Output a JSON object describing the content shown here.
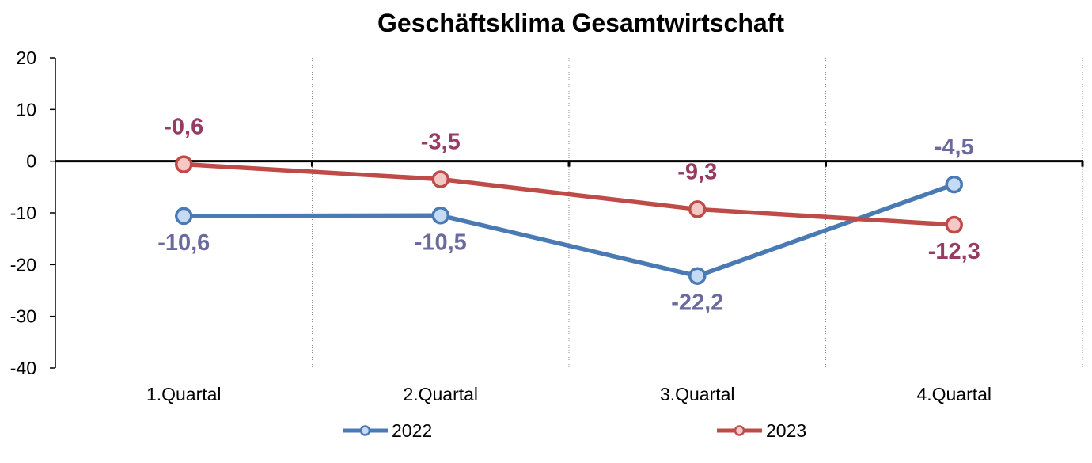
{
  "chart_data": {
    "type": "line",
    "title": "Geschäftsklima Gesamtwirtschaft",
    "categories": [
      "1.Quartal",
      "2.Quartal",
      "3.Quartal",
      "4.Quartal"
    ],
    "ylim": [
      -40,
      20
    ],
    "yticks": [
      20,
      10,
      0,
      -10,
      -20,
      -30,
      -40
    ],
    "grid": "vertical dotted",
    "legend": "bottom",
    "series": [
      {
        "name": "2022",
        "values": [
          -10.6,
          -10.5,
          -22.2,
          -4.5
        ],
        "labels": [
          "-10,6",
          "-10,5",
          "-22,2",
          "-4,5"
        ],
        "label_position": [
          "below",
          "below",
          "below",
          "above"
        ],
        "color": "#4a7ab3",
        "label_color": "#6a6a9e",
        "marker_fill": "#c5daf5"
      },
      {
        "name": "2023",
        "values": [
          -0.6,
          -3.5,
          -9.3,
          -12.3
        ],
        "labels": [
          "-0,6",
          "-3,5",
          "-9,3",
          "-12,3"
        ],
        "label_position": [
          "above",
          "above",
          "above",
          "below"
        ],
        "color": "#bf4b48",
        "label_color": "#963c62",
        "marker_fill": "#f5c8c6"
      }
    ]
  }
}
